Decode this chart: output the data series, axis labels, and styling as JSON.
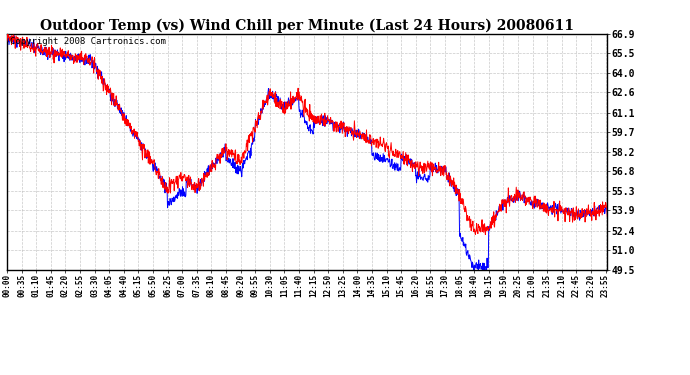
{
  "title": "Outdoor Temp (vs) Wind Chill per Minute (Last 24 Hours) 20080611",
  "copyright": "Copyright 2008 Cartronics.com",
  "ymin": 49.5,
  "ymax": 66.9,
  "yticks": [
    49.5,
    51.0,
    52.4,
    53.9,
    55.3,
    56.8,
    58.2,
    59.7,
    61.1,
    62.6,
    64.0,
    65.5,
    66.9
  ],
  "xtick_interval_min": 35,
  "line_color_temp": "#ff0000",
  "line_color_chill": "#0000ff",
  "bg_color": "#ffffff",
  "grid_color": "#bbbbbb",
  "title_fontsize": 10,
  "copyright_fontsize": 6.5
}
